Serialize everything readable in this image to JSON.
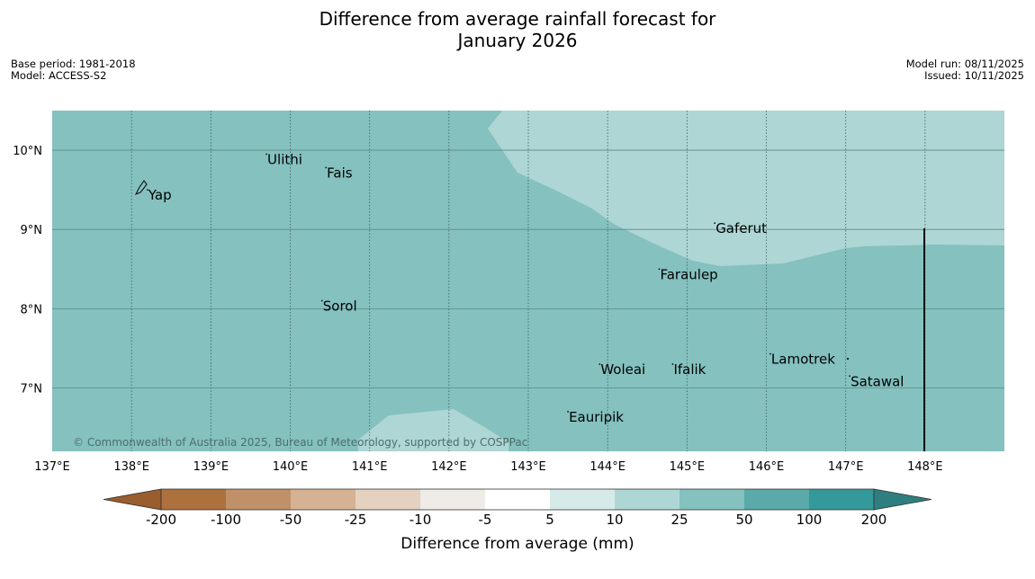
{
  "title_line1": "Difference from average rainfall forecast for",
  "title_line2": "January 2026",
  "base_period": "Base period: 1981-2018",
  "model": "Model: ACCESS-S2",
  "model_run": "Model run: 08/11/2025",
  "issued": "Issued: 10/11/2025",
  "copyright": "© Commonwealth of Australia 2025, Bureau of Meteorology, supported by COSPPac",
  "map": {
    "lon_range": [
      137,
      149
    ],
    "lat_range": [
      6.2,
      10.5
    ],
    "lon_ticks": [
      {
        "value": 137,
        "label": "137°E"
      },
      {
        "value": 138,
        "label": "138°E"
      },
      {
        "value": 139,
        "label": "139°E"
      },
      {
        "value": 140,
        "label": "140°E"
      },
      {
        "value": 141,
        "label": "141°E"
      },
      {
        "value": 142,
        "label": "142°E"
      },
      {
        "value": 143,
        "label": "143°E"
      },
      {
        "value": 144,
        "label": "144°E"
      },
      {
        "value": 145,
        "label": "145°E"
      },
      {
        "value": 146,
        "label": "146°E"
      },
      {
        "value": 147,
        "label": "147°E"
      },
      {
        "value": 148,
        "label": "148°E"
      }
    ],
    "lat_ticks": [
      {
        "value": 10,
        "label": "10°N"
      },
      {
        "value": 9,
        "label": "9°N"
      },
      {
        "value": 8,
        "label": "8°N"
      },
      {
        "value": 7,
        "label": "7°N"
      }
    ],
    "base_color": "#84c1bf",
    "light_color": "#aed6d5",
    "places": [
      {
        "name": "Yap",
        "lon": 138.2,
        "lat": 9.5
      },
      {
        "name": "Ulithi",
        "lon": 139.7,
        "lat": 9.95
      },
      {
        "name": "Fais",
        "lon": 140.45,
        "lat": 9.78
      },
      {
        "name": "Gaferut",
        "lon": 145.35,
        "lat": 9.08
      },
      {
        "name": "Faraulep",
        "lon": 144.65,
        "lat": 8.5
      },
      {
        "name": "Sorol",
        "lon": 140.4,
        "lat": 8.1
      },
      {
        "name": "Lamotrek",
        "lon": 146.05,
        "lat": 7.43
      },
      {
        "name": "Satawal",
        "lon": 147.05,
        "lat": 7.15
      },
      {
        "name": "Woleai",
        "lon": 143.9,
        "lat": 7.3
      },
      {
        "name": "Ifalik",
        "lon": 144.82,
        "lat": 7.3
      },
      {
        "name": "Eauripik",
        "lon": 143.5,
        "lat": 6.7
      }
    ]
  },
  "colorbar": {
    "label": "Difference from average (mm)",
    "bins": [
      {
        "color": "#ad713d"
      },
      {
        "color": "#c09169"
      },
      {
        "color": "#d4b293"
      },
      {
        "color": "#e4d1c0"
      },
      {
        "color": "#efebe6"
      },
      {
        "color": "#ffffff"
      },
      {
        "color": "#d5eae9"
      },
      {
        "color": "#aed6d5"
      },
      {
        "color": "#84c1bf"
      },
      {
        "color": "#59aaa8"
      },
      {
        "color": "#33999a"
      }
    ],
    "under_color": "#9a5d2d",
    "over_color": "#2e7f7f",
    "ticks": [
      "-200",
      "-100",
      "-50",
      "-25",
      "-10",
      "-5",
      "5",
      "10",
      "25",
      "50",
      "100",
      "200"
    ]
  }
}
